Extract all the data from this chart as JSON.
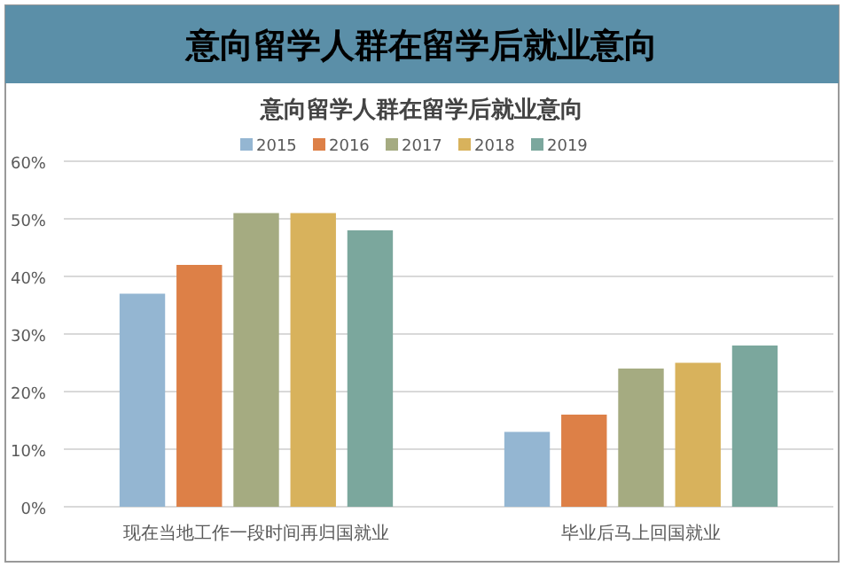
{
  "chart_data": {
    "type": "bar",
    "title": "意向留学人群在留学后就业意向",
    "subtitle": "意向留学人群在留学后就业意向",
    "categories": [
      "现在当地工作一段时间再归国就业",
      "毕业后马上回国就业"
    ],
    "series": [
      {
        "name": "2015",
        "color": "#94b6d2",
        "values": [
          37,
          13
        ]
      },
      {
        "name": "2016",
        "color": "#dd8047",
        "values": [
          42,
          16
        ]
      },
      {
        "name": "2017",
        "color": "#a5ab81",
        "values": [
          51,
          24
        ]
      },
      {
        "name": "2018",
        "color": "#d8b25c",
        "values": [
          51,
          25
        ]
      },
      {
        "name": "2019",
        "color": "#7ba79d",
        "values": [
          48,
          28
        ]
      }
    ],
    "ylim": [
      0,
      60
    ],
    "yticks": [
      {
        "value": 0,
        "label": "0%"
      },
      {
        "value": 10,
        "label": "10%"
      },
      {
        "value": 20,
        "label": "20%"
      },
      {
        "value": 30,
        "label": "30%"
      },
      {
        "value": 40,
        "label": "40%"
      },
      {
        "value": 50,
        "label": "50%"
      },
      {
        "value": 60,
        "label": "60%"
      }
    ],
    "grid": "y",
    "legend": "top"
  }
}
